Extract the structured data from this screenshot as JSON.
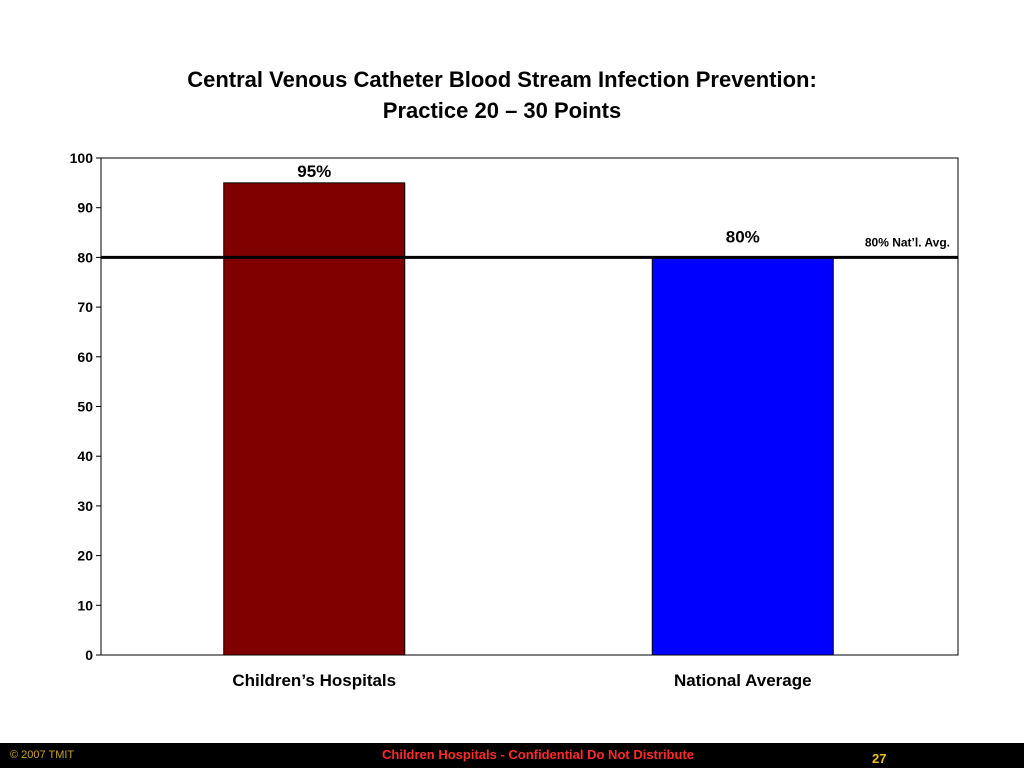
{
  "chart_data": {
    "type": "bar",
    "title": [
      "Central Venous Catheter Blood Stream Infection Prevention:",
      "Practice 20 – 30 Points"
    ],
    "categories": [
      "Children’s Hospitals",
      "National Average"
    ],
    "values": [
      95,
      80
    ],
    "data_labels": [
      "95%",
      "80%"
    ],
    "colors": [
      "#800000",
      "#0000ff"
    ],
    "ylim": [
      0,
      100
    ],
    "yticks": [
      0,
      10,
      20,
      30,
      40,
      50,
      60,
      70,
      80,
      90,
      100
    ],
    "reference_line": {
      "value": 80,
      "label": "80% Nat’l. Avg."
    },
    "grid": false,
    "legend": "none"
  },
  "footer": {
    "copyright": "© 2007 TMIT",
    "confidential": "Children Hospitals - Confidential Do Not Distribute",
    "page_number": "27"
  }
}
